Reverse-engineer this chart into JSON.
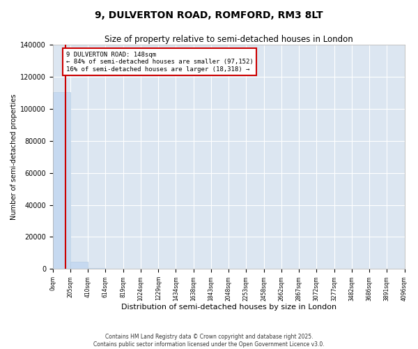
{
  "title": "9, DULVERTON ROAD, ROMFORD, RM3 8LT",
  "subtitle": "Size of property relative to semi-detached houses in London",
  "xlabel": "Distribution of semi-detached houses by size in London",
  "ylabel": "Number of semi-detached properties",
  "property_size": 148,
  "annotation_text_line1": "9 DULVERTON ROAD: 148sqm",
  "annotation_text_line2": "← 84% of semi-detached houses are smaller (97,152)",
  "annotation_text_line3": "16% of semi-detached houses are larger (18,318) →",
  "bar_color": "#c6d9f0",
  "bar_edge_color": "#b8cfe4",
  "property_line_color": "#cc0000",
  "annotation_box_edge_color": "#cc0000",
  "grid_color": "#ffffff",
  "background_color": "#dce6f1",
  "ylim": [
    0,
    140000
  ],
  "yticks": [
    0,
    20000,
    40000,
    60000,
    80000,
    100000,
    120000,
    140000
  ],
  "bin_edges": [
    0,
    205,
    410,
    614,
    819,
    1024,
    1229,
    1434,
    1638,
    1843,
    2048,
    2253,
    2458,
    2662,
    2867,
    3072,
    3277,
    3482,
    3686,
    3891,
    4096
  ],
  "bin_counts": [
    110470,
    4500,
    800,
    250,
    100,
    55,
    30,
    18,
    12,
    8,
    5,
    4,
    3,
    2,
    2,
    1,
    1,
    1,
    1,
    1
  ],
  "copyright_text": "Contains HM Land Registry data © Crown copyright and database right 2025.\nContains public sector information licensed under the Open Government Licence v3.0."
}
